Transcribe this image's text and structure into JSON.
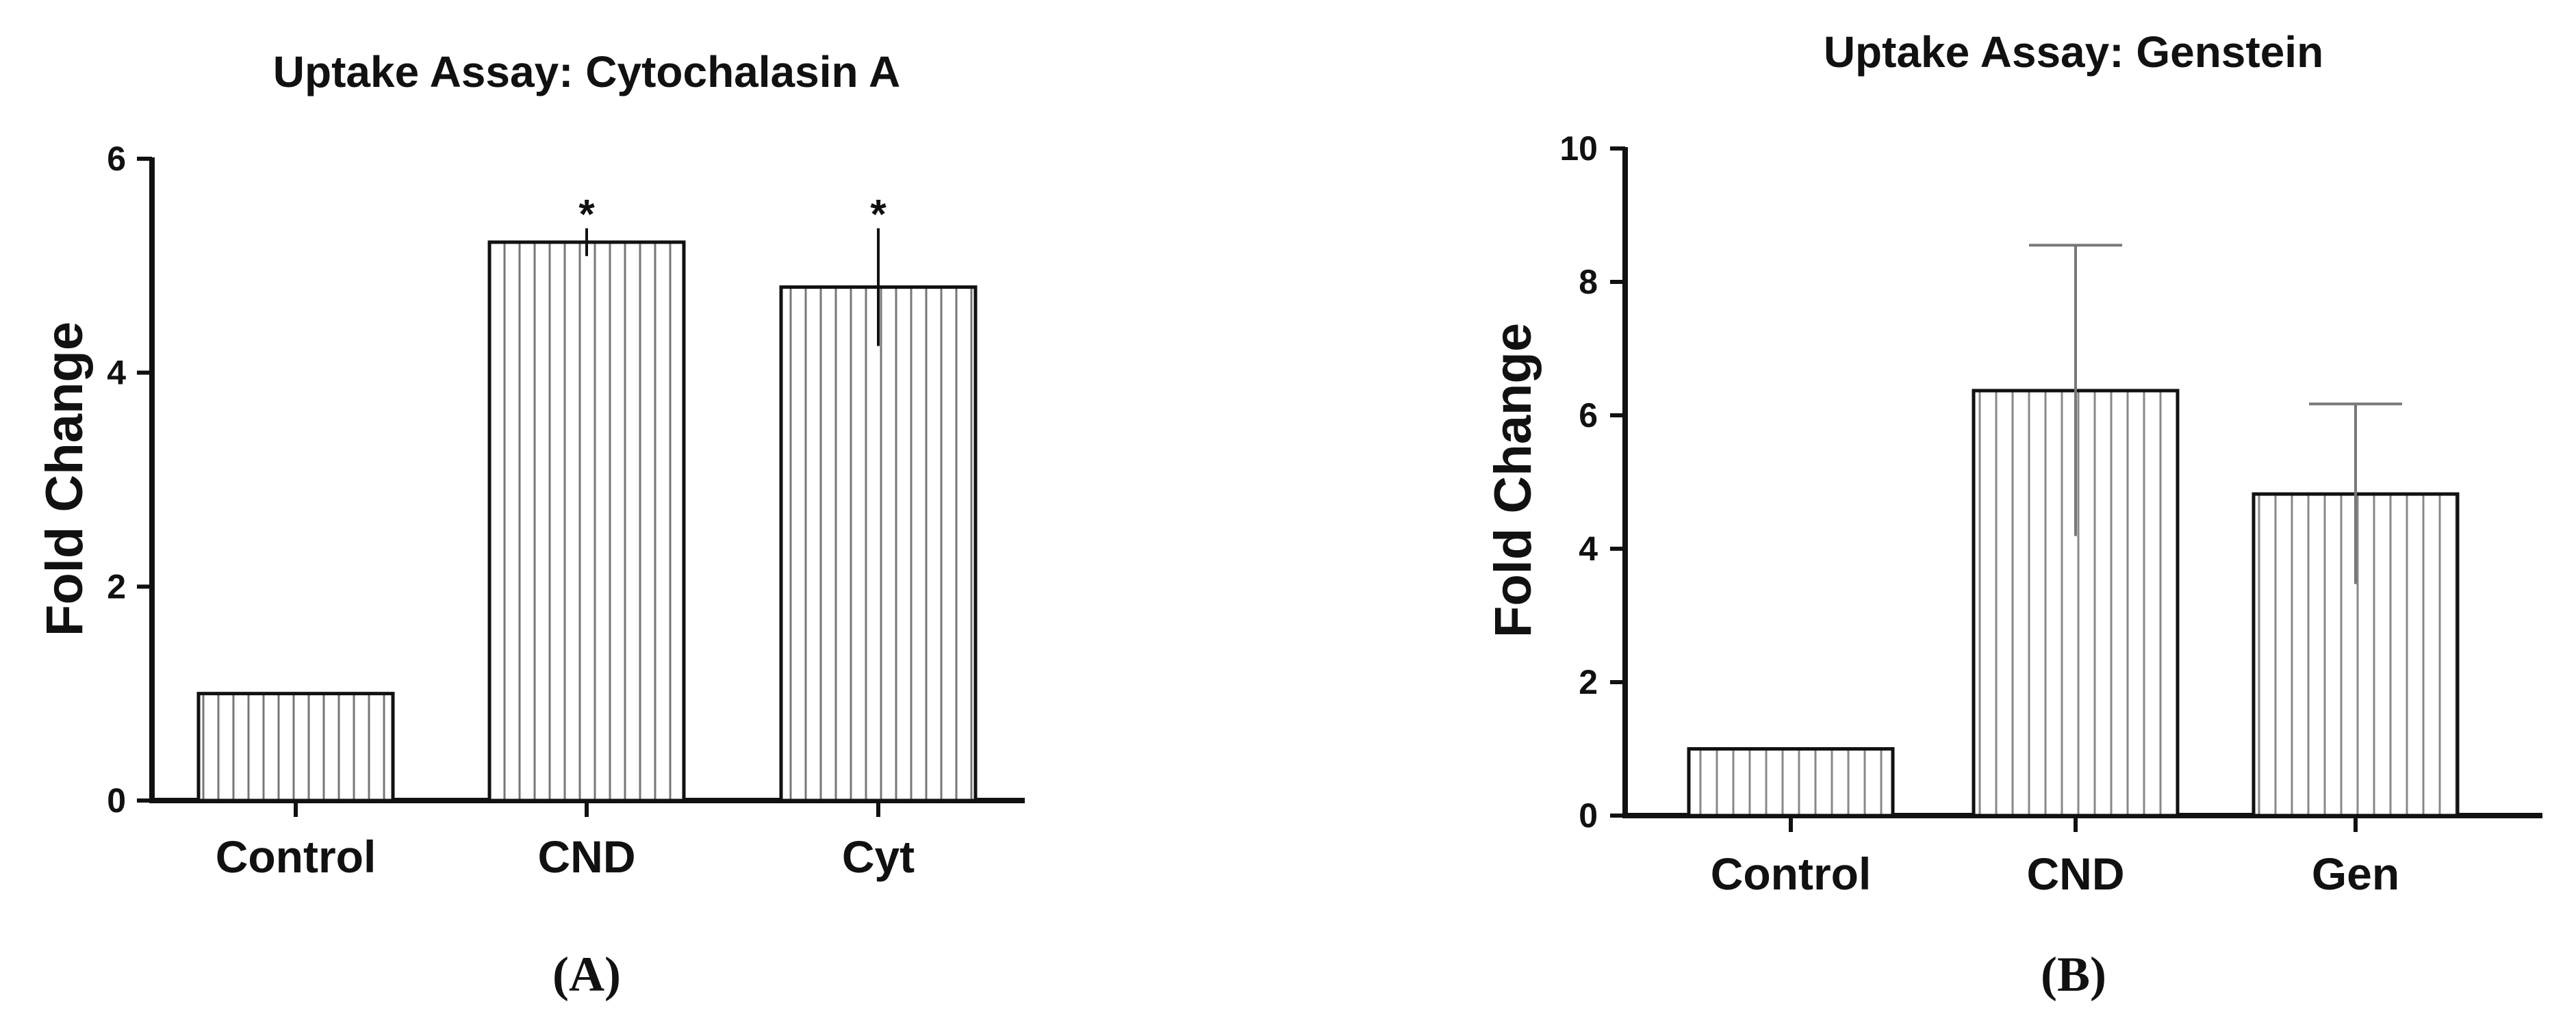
{
  "chart_data": [
    {
      "type": "bar",
      "title": "Uptake Assay: Cytochalasin A",
      "ylabel": "Fold Change",
      "xlabel": "",
      "categories": [
        "Control",
        "CND",
        "Cyt"
      ],
      "values": [
        1.0,
        5.22,
        4.8
      ],
      "errors": [
        0,
        0.13,
        0.55
      ],
      "annotations": [
        "",
        "*",
        "*"
      ],
      "ylim": [
        0,
        6
      ],
      "yticks": [
        "0",
        "2",
        "4",
        "6"
      ],
      "panel_label": "(A)",
      "grid": false,
      "colors": {
        "bar_fill": "#ffffff",
        "hatch": "#888888",
        "bar_edge": "#111111",
        "axis": "#111111",
        "error_bar": "#111111"
      }
    },
    {
      "type": "bar",
      "title": "Uptake Assay: Genstein",
      "ylabel": "Fold Change",
      "xlabel": "",
      "categories": [
        "Control",
        "CND",
        "Gen"
      ],
      "values": [
        1.0,
        6.37,
        4.82
      ],
      "errors": [
        0,
        2.18,
        1.35
      ],
      "annotations": [
        "",
        "",
        ""
      ],
      "ylim": [
        0,
        10
      ],
      "yticks": [
        "0",
        "2",
        "4",
        "6",
        "8",
        "10"
      ],
      "panel_label": "(B)",
      "grid": false,
      "colors": {
        "bar_fill": "#ffffff",
        "hatch": "#888888",
        "bar_edge": "#111111",
        "axis": "#111111",
        "error_bar": "#777777"
      }
    }
  ]
}
